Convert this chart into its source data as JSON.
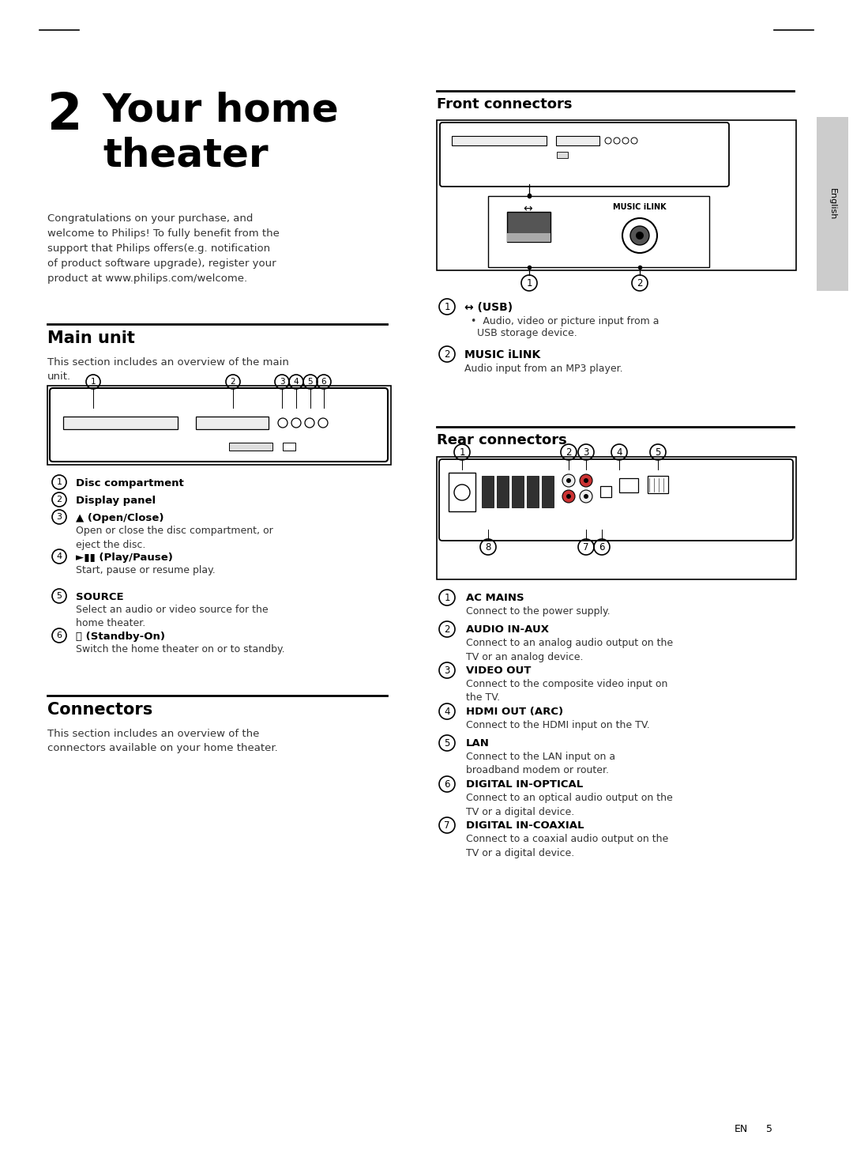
{
  "bg_color": "#ffffff",
  "page_number": "5",
  "page_lang": "EN",
  "chapter_num": "2",
  "intro_text": "Congratulations on your purchase, and\nwelcome to Philips! To fully benefit from the\nsupport that Philips offers(e.g. notification\nof product software upgrade), register your\nproduct at www.philips.com/welcome.",
  "main_unit_title": "Main unit",
  "main_unit_intro": "This section includes an overview of the main\nunit.",
  "main_unit_items": [
    {
      "num": "1",
      "title": "Disc compartment",
      "desc": ""
    },
    {
      "num": "2",
      "title": "Display panel",
      "desc": ""
    },
    {
      "num": "3",
      "title": "▲ (Open/Close)",
      "desc": "Open or close the disc compartment, or\neject the disc."
    },
    {
      "num": "4",
      "title": "►▮▮ (Play/Pause)",
      "desc": "Start, pause or resume play."
    },
    {
      "num": "5",
      "title": "SOURCE",
      "desc": "Select an audio or video source for the\nhome theater."
    },
    {
      "num": "6",
      "title": "⏻ (Standby-On)",
      "desc": "Switch the home theater on or to standby."
    }
  ],
  "connectors_title": "Connectors",
  "connectors_intro": "This section includes an overview of the\nconnectors available on your home theater.",
  "front_connectors_title": "Front connectors",
  "front_items": [
    {
      "num": "1",
      "title": "↔ (USB)",
      "bullet": "Audio, video or picture input from a\nUSB storage device."
    },
    {
      "num": "2",
      "title": "MUSIC iLINK",
      "desc": "Audio input from an MP3 player."
    }
  ],
  "rear_connectors_title": "Rear connectors",
  "rear_items": [
    {
      "num": "1",
      "title": "AC MAINS",
      "desc": "Connect to the power supply."
    },
    {
      "num": "2",
      "title": "AUDIO IN-AUX",
      "desc": "Connect to an analog audio output on the\nTV or an analog device."
    },
    {
      "num": "3",
      "title": "VIDEO OUT",
      "desc": "Connect to the composite video input on\nthe TV."
    },
    {
      "num": "4",
      "title": "HDMI OUT (ARC)",
      "desc": "Connect to the HDMI input on the TV."
    },
    {
      "num": "5",
      "title": "LAN",
      "desc": "Connect to the LAN input on a\nbroadband modem or router."
    },
    {
      "num": "6",
      "title": "DIGITAL IN-OPTICAL",
      "desc": "Connect to an optical audio output on the\nTV or a digital device."
    },
    {
      "num": "7",
      "title": "DIGITAL IN-COAXIAL",
      "desc": "Connect to a coaxial audio output on the\nTV or a digital device."
    }
  ],
  "sidebar_text": "English",
  "tab_color": "#cccccc"
}
